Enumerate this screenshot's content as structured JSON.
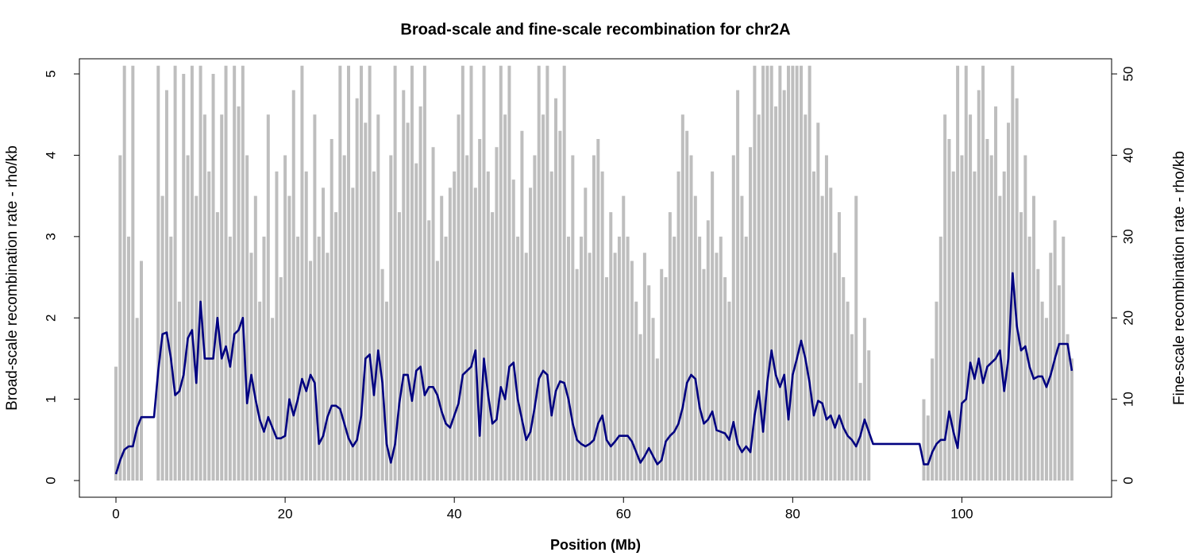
{
  "chart_data": {
    "type": "line",
    "title": "Broad-scale and fine-scale recombination for chr2A",
    "xlabel": "Position (Mb)",
    "ylabel": "Broad-scale recombination rate - rho/kb",
    "y2label": "Fine-scale recombination rate - rho/kb",
    "xlim": [
      -4.32,
      117.7
    ],
    "xticks": [
      0,
      20,
      40,
      60,
      80,
      100
    ],
    "ylim": [
      -0.205,
      5.186
    ],
    "yticks": [
      0,
      1,
      2,
      3,
      4,
      5
    ],
    "y2lim": [
      -2.05,
      51.86
    ],
    "y2ticks": [
      0,
      10,
      20,
      30,
      40,
      50
    ],
    "x": [
      0,
      0.5,
      1,
      1.5,
      2,
      2.5,
      3,
      3.5,
      4,
      4.5,
      5,
      5.5,
      6,
      6.5,
      7,
      7.5,
      8,
      8.5,
      9,
      9.5,
      10,
      10.5,
      11,
      11.5,
      12,
      12.5,
      13,
      13.5,
      14,
      14.5,
      15,
      15.5,
      16,
      16.5,
      17,
      17.5,
      18,
      18.5,
      19,
      19.5,
      20,
      20.5,
      21,
      21.5,
      22,
      22.5,
      23,
      23.5,
      24,
      24.5,
      25,
      25.5,
      26,
      26.5,
      27,
      27.5,
      28,
      28.5,
      29,
      29.5,
      30,
      30.5,
      31,
      31.5,
      32,
      32.5,
      33,
      33.5,
      34,
      34.5,
      35,
      35.5,
      36,
      36.5,
      37,
      37.5,
      38,
      38.5,
      39,
      39.5,
      40,
      40.5,
      41,
      41.5,
      42,
      42.5,
      43,
      43.5,
      44,
      44.5,
      45,
      45.5,
      46,
      46.5,
      47,
      47.5,
      48,
      48.5,
      49,
      49.5,
      50,
      50.5,
      51,
      51.5,
      52,
      52.5,
      53,
      53.5,
      54,
      54.5,
      55,
      55.5,
      56,
      56.5,
      57,
      57.5,
      58,
      58.5,
      59,
      59.5,
      60,
      60.5,
      61,
      61.5,
      62,
      62.5,
      63,
      63.5,
      64,
      64.5,
      65,
      65.5,
      66,
      66.5,
      67,
      67.5,
      68,
      68.5,
      69,
      69.5,
      70,
      70.5,
      71,
      71.5,
      72,
      72.5,
      73,
      73.5,
      74,
      74.5,
      75,
      75.5,
      76,
      76.5,
      77,
      77.5,
      78,
      78.5,
      79,
      79.5,
      80,
      80.5,
      81,
      81.5,
      82,
      82.5,
      83,
      83.5,
      84,
      84.5,
      85,
      85.5,
      86,
      86.5,
      87,
      87.5,
      88,
      88.5,
      89,
      89.5,
      90,
      90.5,
      91,
      91.5,
      92,
      92.5,
      93,
      93.5,
      94,
      94.5,
      95,
      95.5,
      96,
      96.5,
      97,
      97.5,
      98,
      98.5,
      99,
      99.5,
      100,
      100.5,
      101,
      101.5,
      102,
      102.5,
      103,
      103.5,
      104,
      104.5,
      105,
      105.5,
      106,
      106.5,
      107,
      107.5,
      108,
      108.5,
      109,
      109.5,
      110,
      110.5,
      111,
      111.5,
      112,
      112.5,
      113
    ],
    "series": [
      {
        "type": "spike",
        "axis": "y2",
        "color": "#bebebe",
        "values": [
          14,
          40,
          51,
          30,
          51,
          20,
          27,
          null,
          null,
          null,
          51,
          35,
          48,
          30,
          51,
          22,
          50,
          40,
          51,
          35,
          51,
          45,
          38,
          50,
          33,
          45,
          51,
          30,
          51,
          46,
          51,
          40,
          28,
          35,
          22,
          30,
          45,
          20,
          38,
          25,
          40,
          35,
          48,
          30,
          51,
          38,
          27,
          45,
          30,
          36,
          28,
          42,
          33,
          51,
          40,
          51,
          36,
          47,
          51,
          44,
          51,
          38,
          45,
          26,
          22,
          40,
          51,
          33,
          48,
          44,
          51,
          39,
          46,
          51,
          32,
          41,
          27,
          35,
          30,
          36,
          38,
          45,
          51,
          40,
          51,
          36,
          42,
          51,
          38,
          33,
          41,
          51,
          45,
          51,
          37,
          30,
          43,
          28,
          36,
          40,
          51,
          45,
          51,
          38,
          47,
          43,
          51,
          30,
          40,
          26,
          30,
          36,
          28,
          40,
          42,
          38,
          25,
          33,
          28,
          30,
          35,
          30,
          27,
          22,
          18,
          28,
          24,
          20,
          15,
          26,
          25,
          33,
          30,
          38,
          45,
          43,
          40,
          35,
          30,
          26,
          32,
          38,
          28,
          30,
          25,
          22,
          40,
          48,
          35,
          30,
          41,
          51,
          45,
          51,
          51,
          51,
          46,
          51,
          48,
          51,
          51,
          51,
          51,
          45,
          51,
          38,
          44,
          35,
          40,
          36,
          28,
          33,
          25,
          22,
          18,
          35,
          12,
          20,
          16,
          null,
          null,
          null,
          null,
          null,
          null,
          null,
          null,
          null,
          null,
          null,
          null,
          10,
          8,
          15,
          22,
          30,
          45,
          42,
          38,
          51,
          40,
          51,
          45,
          38,
          48,
          51,
          42,
          40,
          46,
          35,
          38,
          44,
          51,
          47,
          33,
          40,
          30,
          35,
          26,
          22,
          20,
          28,
          32,
          24,
          30,
          18,
          15
        ]
      },
      {
        "type": "line",
        "axis": "y",
        "color": "#000080",
        "values": [
          0.08,
          0.25,
          0.38,
          0.42,
          0.42,
          0.65,
          0.78,
          0.78,
          0.78,
          0.78,
          1.35,
          1.8,
          1.82,
          1.5,
          1.05,
          1.1,
          1.3,
          1.75,
          1.85,
          1.2,
          2.2,
          1.5,
          1.5,
          1.5,
          2.0,
          1.5,
          1.65,
          1.4,
          1.8,
          1.85,
          2.0,
          0.95,
          1.3,
          1.0,
          0.75,
          0.6,
          0.78,
          0.65,
          0.52,
          0.52,
          0.55,
          1.0,
          0.8,
          1.0,
          1.25,
          1.1,
          1.3,
          1.2,
          0.45,
          0.55,
          0.78,
          0.92,
          0.92,
          0.88,
          0.7,
          0.52,
          0.42,
          0.5,
          0.8,
          1.5,
          1.55,
          1.05,
          1.6,
          1.2,
          0.45,
          0.22,
          0.45,
          0.95,
          1.3,
          1.3,
          0.98,
          1.35,
          1.4,
          1.05,
          1.15,
          1.15,
          1.05,
          0.85,
          0.7,
          0.65,
          0.8,
          0.95,
          1.3,
          1.35,
          1.4,
          1.6,
          0.55,
          1.5,
          1.05,
          0.7,
          0.75,
          1.15,
          1.0,
          1.4,
          1.45,
          1.0,
          0.75,
          0.5,
          0.6,
          0.9,
          1.25,
          1.35,
          1.3,
          0.8,
          1.1,
          1.22,
          1.2,
          1.0,
          0.7,
          0.5,
          0.45,
          0.42,
          0.45,
          0.5,
          0.7,
          0.8,
          0.5,
          0.42,
          0.48,
          0.55,
          0.55,
          0.55,
          0.48,
          0.35,
          0.22,
          0.3,
          0.4,
          0.3,
          0.2,
          0.25,
          0.48,
          0.55,
          0.6,
          0.7,
          0.9,
          1.2,
          1.3,
          1.25,
          0.9,
          0.7,
          0.75,
          0.85,
          0.62,
          0.6,
          0.58,
          0.5,
          0.72,
          0.45,
          0.35,
          0.42,
          0.35,
          0.8,
          1.1,
          0.6,
          1.2,
          1.6,
          1.3,
          1.15,
          1.3,
          0.75,
          1.3,
          1.5,
          1.72,
          1.5,
          1.2,
          0.8,
          0.98,
          0.95,
          0.75,
          0.8,
          0.65,
          0.8,
          0.65,
          0.55,
          0.5,
          0.42,
          0.55,
          0.75,
          0.6,
          0.45,
          0.45,
          0.45,
          0.45,
          0.45,
          0.45,
          0.45,
          0.45,
          0.45,
          0.45,
          0.45,
          0.45,
          0.2,
          0.2,
          0.35,
          0.45,
          0.5,
          0.5,
          0.85,
          0.6,
          0.4,
          0.95,
          1.0,
          1.45,
          1.25,
          1.5,
          1.2,
          1.4,
          1.45,
          1.5,
          1.6,
          1.1,
          1.5,
          2.55,
          1.9,
          1.6,
          1.65,
          1.4,
          1.25,
          1.28,
          1.28,
          1.15,
          1.3,
          1.5,
          1.68,
          1.68,
          1.68,
          1.35
        ]
      }
    ]
  }
}
